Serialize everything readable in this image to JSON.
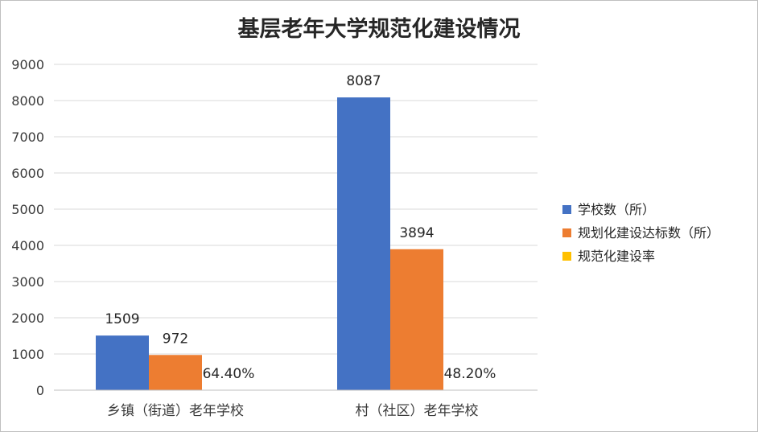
{
  "chart_data": {
    "type": "bar",
    "title": "基层老年大学规范化建设情况",
    "categories": [
      "乡镇（街道）老年学校",
      "村（社区）老年学校"
    ],
    "series": [
      {
        "name": "学校数（所）",
        "values": [
          1509,
          8087
        ],
        "labels": [
          "1509",
          "8087"
        ],
        "color": "#4472c4"
      },
      {
        "name": "规划化建设达标数（所）",
        "values": [
          972,
          3894
        ],
        "labels": [
          "972",
          "3894"
        ],
        "color": "#ed7d31"
      },
      {
        "name": "规范化建设率",
        "values": [
          0.644,
          0.482
        ],
        "labels": [
          "64.40%",
          "48.20%"
        ],
        "color": "#ffc000"
      }
    ],
    "yticks": [
      "0",
      "1000",
      "2000",
      "3000",
      "4000",
      "5000",
      "6000",
      "7000",
      "8000",
      "9000"
    ],
    "ylim": [
      0,
      9000
    ],
    "grid": true,
    "legend_position": "right"
  }
}
